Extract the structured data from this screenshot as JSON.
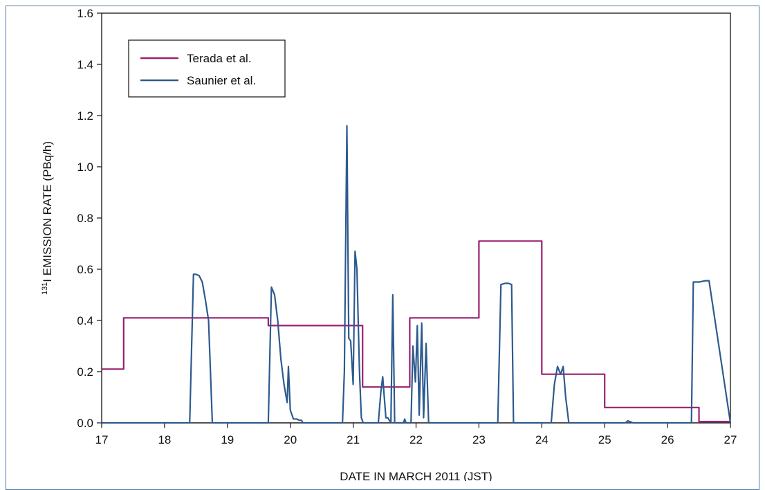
{
  "chart_data": {
    "type": "line",
    "title": "",
    "xlabel": "DATE IN MARCH 2011 (JST)",
    "ylabel_sup": "131",
    "ylabel": "I EMISSION RATE (PBq/h)",
    "xlim": [
      17,
      27
    ],
    "ylim": [
      0,
      1.6
    ],
    "x_ticks": [
      17,
      18,
      19,
      20,
      21,
      22,
      23,
      24,
      25,
      26,
      27
    ],
    "y_ticks": [
      0.0,
      0.2,
      0.4,
      0.6,
      0.8,
      1.0,
      1.2,
      1.4,
      1.6
    ],
    "y_tick_labels": [
      "0.0",
      "0.2",
      "0.4",
      "0.6",
      "0.8",
      "1.0",
      "1.2",
      "1.4",
      "1.6"
    ],
    "legend_position": "top-left",
    "series": [
      {
        "name": "Terada et al.",
        "color": "#9b1f6e",
        "step": true,
        "x": [
          17,
          17.35,
          19.65,
          21.15,
          21.9,
          23,
          24,
          25,
          26.5,
          27
        ],
        "y": [
          0.21,
          0.41,
          0.38,
          0.14,
          0.41,
          0.71,
          0.19,
          0.06,
          0.005,
          0.005
        ]
      },
      {
        "name": "Saunier et al.",
        "color": "#2d5a8e",
        "x": [
          17,
          18.4,
          18.46,
          18.5,
          18.55,
          18.6,
          18.65,
          18.7,
          18.73,
          18.76,
          19.65,
          19.7,
          19.75,
          19.8,
          19.85,
          19.9,
          19.95,
          19.97,
          20.0,
          20.05,
          20.1,
          20.15,
          20.18,
          20.2,
          20.83,
          20.86,
          20.9,
          20.93,
          20.96,
          21.0,
          21.03,
          21.06,
          21.1,
          21.13,
          21.16,
          21.18,
          21.4,
          21.44,
          21.47,
          21.52,
          21.55,
          21.6,
          21.63,
          21.66,
          21.8,
          21.82,
          21.84,
          21.92,
          21.95,
          21.99,
          22.02,
          22.05,
          22.09,
          22.12,
          22.16,
          22.2,
          22.25,
          22.28,
          22.32,
          22.36,
          23.3,
          23.35,
          23.42,
          23.47,
          23.52,
          23.55,
          24.15,
          24.2,
          24.25,
          24.3,
          24.34,
          24.38,
          24.43,
          24.47,
          24.5,
          25.33,
          25.37,
          25.45,
          25.5,
          26.38,
          26.41,
          26.5,
          26.6,
          26.66,
          27
        ],
        "y": [
          0,
          0,
          0.58,
          0.58,
          0.575,
          0.55,
          0.48,
          0.4,
          0.2,
          0,
          0,
          0.53,
          0.5,
          0.4,
          0.25,
          0.15,
          0.08,
          0.22,
          0.05,
          0.015,
          0.015,
          0.01,
          0.01,
          0,
          0,
          0.2,
          1.16,
          0.33,
          0.32,
          0.15,
          0.67,
          0.6,
          0.2,
          0.02,
          0.0,
          0.0,
          0.0,
          0.12,
          0.18,
          0.02,
          0.02,
          0.0,
          0.5,
          0.0,
          0.0,
          0.015,
          0.0,
          0.0,
          0.3,
          0.16,
          0.38,
          0.03,
          0.39,
          0.02,
          0.31,
          0.0,
          0.0,
          0.0,
          0.0,
          0.0,
          0.0,
          0.54,
          0.545,
          0.545,
          0.54,
          0.0,
          0.0,
          0.15,
          0.22,
          0.19,
          0.22,
          0.1,
          0.0,
          0.0,
          0.0,
          0.0,
          0.008,
          0.0,
          0.0,
          0.0,
          0.55,
          0.55,
          0.555,
          0.555,
          0.0
        ]
      }
    ]
  }
}
